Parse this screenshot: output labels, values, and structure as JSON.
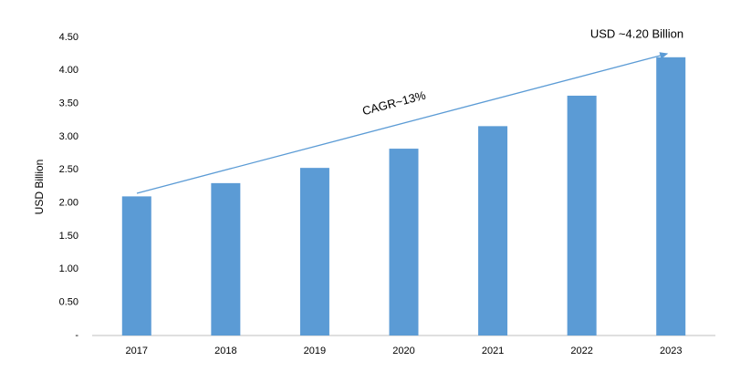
{
  "chart_data": {
    "type": "bar",
    "y_label": "USD Billion",
    "annotations": [
      "USD ~4.20 Billion",
      "CAGR~13%"
    ],
    "categories": [
      "2017",
      "2018",
      "2019",
      "2020",
      "2021",
      "2022",
      "2023"
    ],
    "values": [
      2.1,
      2.3,
      2.53,
      2.82,
      3.16,
      3.62,
      4.2
    ],
    "color": "#5b9bd5",
    "ylim": [
      0,
      4.5
    ],
    "yticks": [
      {
        "value": 0,
        "label": "-"
      },
      {
        "value": 0.5,
        "label": "0.50"
      },
      {
        "value": 1,
        "label": "1.00"
      },
      {
        "value": 1.5,
        "label": "1.50"
      },
      {
        "value": 2,
        "label": "2.00"
      },
      {
        "value": 2.5,
        "label": "2.50"
      },
      {
        "value": 3,
        "label": "3.00"
      },
      {
        "value": 3.5,
        "label": "3.50"
      },
      {
        "value": 4,
        "label": "4.00"
      },
      {
        "value": 4.5,
        "label": "4.50"
      }
    ],
    "grid": false
  }
}
